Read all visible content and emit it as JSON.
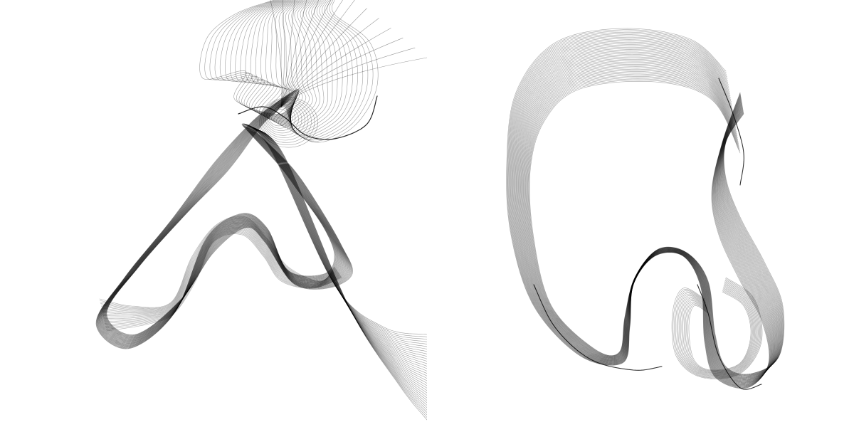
{
  "artwork": {
    "stroke_color": "#000000",
    "background_color": "#ffffff",
    "panels": [
      {
        "id": "left",
        "line_count": 36
      },
      {
        "id": "right",
        "line_count": 44
      }
    ]
  }
}
